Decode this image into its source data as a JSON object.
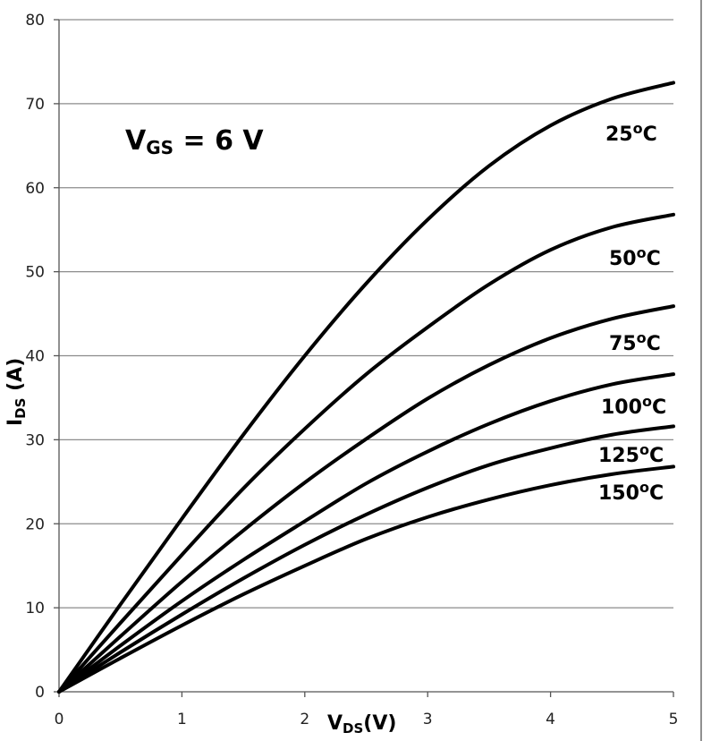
{
  "chart_data": {
    "type": "line",
    "xlabel_main": "V",
    "xlabel_sub": "DS",
    "xlabel_unit": "(V)",
    "ylabel_main": "I",
    "ylabel_sub": "DS",
    "ylabel_unit": " (A)",
    "annotation_main": "V",
    "annotation_sub": "GS",
    "annotation_rest": " = 6 V",
    "xlim": [
      0,
      5
    ],
    "ylim": [
      0,
      80
    ],
    "xticks": [
      "0",
      "1",
      "2",
      "3",
      "4",
      "5"
    ],
    "yticks": [
      "0",
      "10",
      "20",
      "30",
      "40",
      "50",
      "60",
      "70",
      "80"
    ],
    "grid": "horizontal",
    "x": [
      0,
      0.5,
      1,
      1.5,
      2,
      2.5,
      3,
      3.5,
      4,
      4.5,
      5
    ],
    "series": [
      {
        "name": "25°C",
        "values": [
          0,
          10.4,
          20.6,
          30.6,
          40.0,
          48.6,
          56.2,
          62.6,
          67.4,
          70.6,
          72.5
        ]
      },
      {
        "name": "50°C",
        "values": [
          0,
          8.2,
          16.3,
          24.2,
          31.3,
          37.8,
          43.4,
          48.5,
          52.6,
          55.3,
          56.8
        ]
      },
      {
        "name": "75°C",
        "values": [
          0,
          6.6,
          13.1,
          19.2,
          24.9,
          30.1,
          34.9,
          38.9,
          42.1,
          44.4,
          45.9
        ]
      },
      {
        "name": "100°C",
        "values": [
          0,
          5.5,
          10.8,
          15.7,
          20.3,
          24.8,
          28.6,
          31.9,
          34.6,
          36.6,
          37.8
        ]
      },
      {
        "name": "125°C",
        "values": [
          0,
          4.7,
          9.2,
          13.5,
          17.5,
          21.1,
          24.3,
          27.0,
          29.0,
          30.6,
          31.6
        ]
      },
      {
        "name": "150°C",
        "values": [
          0,
          4.0,
          7.9,
          11.6,
          15.0,
          18.2,
          20.8,
          22.9,
          24.6,
          25.9,
          26.8
        ]
      }
    ],
    "label_text": {
      "s0": "25",
      "s1": "50",
      "s2": "75",
      "s3": "100",
      "s4": "125",
      "s5": "150",
      "deg": "o",
      "unit": "C"
    }
  }
}
